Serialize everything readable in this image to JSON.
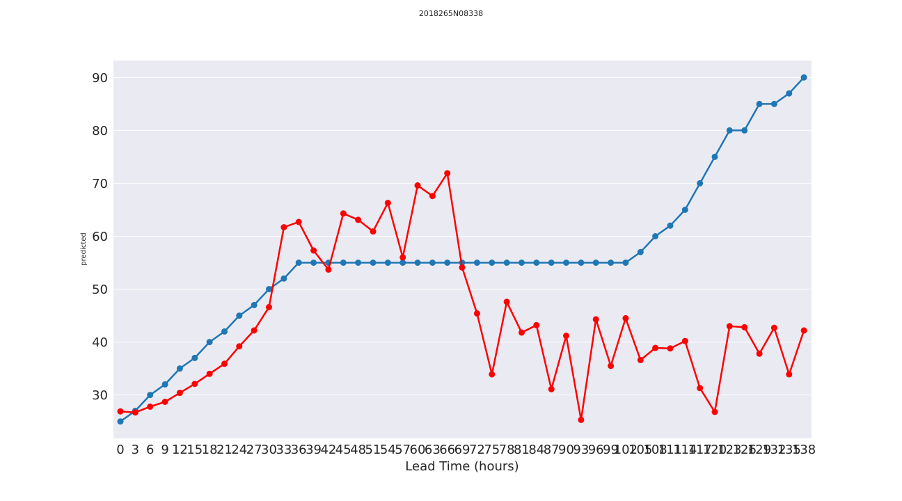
{
  "chart_data": {
    "type": "line",
    "title": "2018265N08338",
    "xlabel": "Lead Time (hours)",
    "ylabel": "predicted",
    "categories": [
      "0",
      "3",
      "6",
      "9",
      "12",
      "15",
      "18",
      "21",
      "24",
      "27",
      "30",
      "33",
      "36",
      "39",
      "42",
      "45",
      "48",
      "51",
      "54",
      "57",
      "60",
      "63",
      "66",
      "69",
      "72",
      "75",
      "78",
      "81",
      "84",
      "87",
      "90",
      "93",
      "96",
      "99",
      "102",
      "105",
      "108",
      "111",
      "114",
      "117",
      "120",
      "123",
      "126",
      "129",
      "132",
      "135",
      "138"
    ],
    "ylim": [
      21.8,
      93.2
    ],
    "yticks": [
      30,
      40,
      50,
      60,
      70,
      80,
      90
    ],
    "grid": true,
    "series": [
      {
        "color": "#1f77b4",
        "values": [
          25,
          27,
          30,
          32,
          35,
          37,
          40,
          42,
          45,
          47,
          50,
          52,
          55,
          55,
          55,
          55,
          55,
          55,
          55,
          55,
          55,
          55,
          55,
          55,
          55,
          55,
          55,
          55,
          55,
          55,
          55,
          55,
          55,
          55,
          55,
          57,
          60,
          62,
          65,
          70,
          75,
          80,
          80,
          85,
          85,
          87,
          90
        ]
      },
      {
        "color": "#ff0000",
        "values": [
          26.9,
          26.7,
          27.8,
          28.7,
          30.4,
          32.1,
          34.0,
          35.9,
          39.2,
          42.2,
          46.6,
          61.7,
          62.7,
          57.3,
          53.7,
          64.3,
          63.1,
          60.9,
          66.3,
          56.0,
          69.6,
          67.6,
          71.9,
          54.1,
          45.4,
          33.9,
          47.6,
          41.8,
          43.2,
          31.1,
          41.2,
          25.3,
          44.3,
          35.5,
          44.5,
          36.6,
          38.9,
          38.8,
          40.2,
          31.3,
          26.8,
          43.0,
          42.8,
          37.8,
          42.7,
          33.9,
          42.2
        ]
      }
    ]
  }
}
